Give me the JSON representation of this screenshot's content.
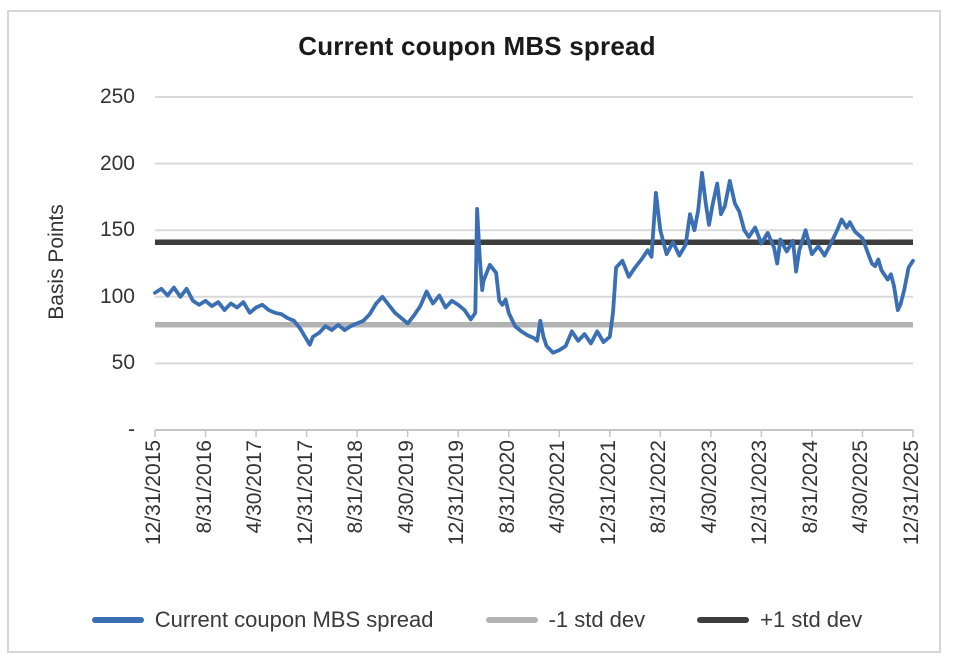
{
  "title": "Current coupon MBS spread",
  "y_axis": {
    "label": "Basis Points",
    "ticks": [
      "250",
      "200",
      "150",
      "100",
      "50",
      "-"
    ],
    "tick_values": [
      250,
      200,
      150,
      100,
      50,
      0
    ]
  },
  "x_axis": {
    "labels": [
      "12/31/2015",
      "8/31/2016",
      "4/30/2017",
      "12/31/2017",
      "8/31/2018",
      "4/30/2019",
      "12/31/2019",
      "8/31/2020",
      "4/30/2021",
      "12/31/2021",
      "8/31/2022",
      "4/30/2023",
      "12/31/2023",
      "8/31/2024",
      "4/30/2025",
      "12/31/2025"
    ]
  },
  "legend": [
    {
      "label": "Current coupon MBS spread",
      "color": "#3A6FB4"
    },
    {
      "label": "-1 std dev",
      "color": "#B3B3B3"
    },
    {
      "label": "+1 std dev",
      "color": "#3D3D3D"
    }
  ],
  "colors": {
    "series_blue": "#3A6FB4",
    "minus_std": "#B3B3B3",
    "plus_std": "#3D3D3D",
    "gridline": "#D9D9D9",
    "axis": "#C6C6C6",
    "text": "#333333",
    "title_text": "#1A1A1A",
    "border": "#D6D6D6"
  },
  "chart_data": {
    "type": "line",
    "title": "Current coupon MBS spread",
    "ylabel": "Basis Points",
    "ylim": [
      0,
      250
    ],
    "grid": "horizontal",
    "legend_position": "bottom",
    "x_unit": "months since 12/31/2015",
    "x_tick_labels": [
      "12/31/2015",
      "8/31/2016",
      "4/30/2017",
      "12/31/2017",
      "8/31/2018",
      "4/30/2019",
      "12/31/2019",
      "8/31/2020",
      "4/30/2021",
      "12/31/2021",
      "8/31/2022",
      "4/30/2023",
      "12/31/2023",
      "8/31/2024",
      "4/30/2025",
      "12/31/2025"
    ],
    "x_tick_interval_months": 8,
    "series": [
      {
        "name": "Current coupon MBS spread",
        "style": "jagged line",
        "color": "#3A6FB4",
        "points": [
          [
            0,
            103
          ],
          [
            1,
            106
          ],
          [
            2,
            101
          ],
          [
            3,
            107
          ],
          [
            4,
            100
          ],
          [
            5,
            106
          ],
          [
            6,
            97
          ],
          [
            7,
            94
          ],
          [
            8,
            97
          ],
          [
            9,
            93
          ],
          [
            10,
            96
          ],
          [
            11,
            90
          ],
          [
            12,
            95
          ],
          [
            13,
            92
          ],
          [
            14,
            96
          ],
          [
            15,
            88
          ],
          [
            16,
            92
          ],
          [
            17,
            94
          ],
          [
            18,
            90
          ],
          [
            19,
            88
          ],
          [
            20,
            87
          ],
          [
            21,
            84
          ],
          [
            22,
            82
          ],
          [
            23,
            76
          ],
          [
            24,
            68
          ],
          [
            24.5,
            64
          ],
          [
            25,
            70
          ],
          [
            26,
            73
          ],
          [
            27,
            78
          ],
          [
            28,
            75
          ],
          [
            29,
            79
          ],
          [
            30,
            75
          ],
          [
            31,
            78
          ],
          [
            32,
            80
          ],
          [
            33,
            82
          ],
          [
            34,
            87
          ],
          [
            35,
            95
          ],
          [
            36,
            100
          ],
          [
            37,
            94
          ],
          [
            38,
            88
          ],
          [
            39,
            84
          ],
          [
            40,
            80
          ],
          [
            41,
            86
          ],
          [
            42,
            93
          ],
          [
            43,
            104
          ],
          [
            44,
            95
          ],
          [
            45,
            101
          ],
          [
            46,
            92
          ],
          [
            47,
            97
          ],
          [
            48,
            94
          ],
          [
            49,
            90
          ],
          [
            50,
            83
          ],
          [
            50.7,
            88
          ],
          [
            51,
            166
          ],
          [
            51.4,
            130
          ],
          [
            51.8,
            105
          ],
          [
            52,
            112
          ],
          [
            53,
            124
          ],
          [
            54,
            118
          ],
          [
            54.5,
            97
          ],
          [
            55,
            94
          ],
          [
            55.5,
            98
          ],
          [
            56,
            88
          ],
          [
            57,
            78
          ],
          [
            58,
            74
          ],
          [
            59,
            71
          ],
          [
            60,
            69
          ],
          [
            60.5,
            67
          ],
          [
            61,
            82
          ],
          [
            61.5,
            70
          ],
          [
            62,
            63
          ],
          [
            63,
            58
          ],
          [
            64,
            60
          ],
          [
            65,
            63
          ],
          [
            66,
            74
          ],
          [
            67,
            67
          ],
          [
            68,
            72
          ],
          [
            69,
            65
          ],
          [
            70,
            74
          ],
          [
            71,
            66
          ],
          [
            72,
            70
          ],
          [
            72.5,
            88
          ],
          [
            73,
            122
          ],
          [
            74,
            127
          ],
          [
            75,
            115
          ],
          [
            76,
            122
          ],
          [
            77,
            128
          ],
          [
            78,
            135
          ],
          [
            78.6,
            130
          ],
          [
            79.3,
            178
          ],
          [
            80,
            150
          ],
          [
            81,
            132
          ],
          [
            82,
            141
          ],
          [
            83,
            131
          ],
          [
            84,
            139
          ],
          [
            84.7,
            162
          ],
          [
            85.4,
            150
          ],
          [
            86,
            165
          ],
          [
            86.6,
            193
          ],
          [
            87.2,
            170
          ],
          [
            87.7,
            154
          ],
          [
            88.3,
            170
          ],
          [
            89,
            185
          ],
          [
            89.6,
            162
          ],
          [
            90.2,
            168
          ],
          [
            91,
            187
          ],
          [
            91.8,
            170
          ],
          [
            92.5,
            164
          ],
          [
            93.3,
            150
          ],
          [
            94,
            145
          ],
          [
            95,
            152
          ],
          [
            96,
            140
          ],
          [
            97,
            148
          ],
          [
            98,
            137
          ],
          [
            98.5,
            125
          ],
          [
            99,
            143
          ],
          [
            100,
            134
          ],
          [
            101,
            142
          ],
          [
            101.5,
            119
          ],
          [
            102,
            135
          ],
          [
            103,
            150
          ],
          [
            104,
            132
          ],
          [
            105,
            138
          ],
          [
            106,
            131
          ],
          [
            107,
            140
          ],
          [
            108,
            150
          ],
          [
            108.7,
            158
          ],
          [
            109.5,
            152
          ],
          [
            110,
            156
          ],
          [
            110.8,
            149
          ],
          [
            111.5,
            146
          ],
          [
            112,
            144
          ],
          [
            113,
            131
          ],
          [
            113.5,
            125
          ],
          [
            114,
            123
          ],
          [
            114.5,
            128
          ],
          [
            115,
            120
          ],
          [
            116,
            113
          ],
          [
            116.5,
            117
          ],
          [
            117,
            108
          ],
          [
            117.6,
            90
          ],
          [
            118,
            94
          ],
          [
            118.6,
            105
          ],
          [
            119.3,
            122
          ],
          [
            120,
            127
          ]
        ]
      },
      {
        "name": "-1 std dev",
        "style": "horizontal line",
        "color": "#B3B3B3",
        "value": 79
      },
      {
        "name": "+1 std dev",
        "style": "horizontal line",
        "color": "#3D3D3D",
        "value": 141
      }
    ]
  }
}
